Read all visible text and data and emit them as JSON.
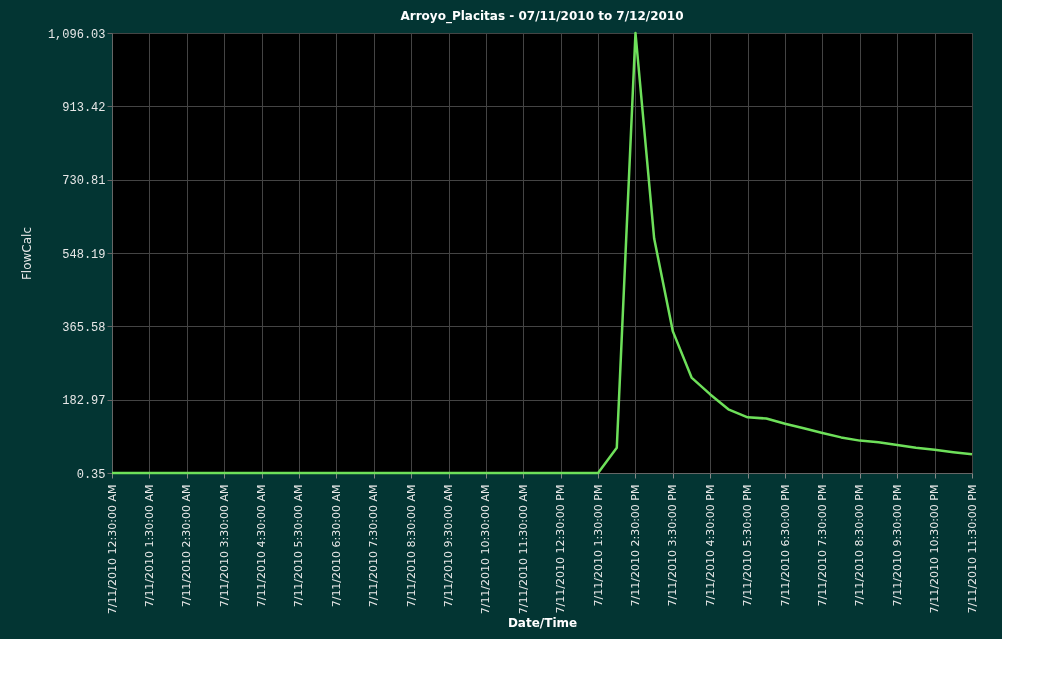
{
  "chart_data": {
    "type": "line",
    "title": "Arroyo_Placitas - 07/11/2010 to 7/12/2010",
    "xlabel": "Date/Time",
    "ylabel": "FlowCalc",
    "categories": [
      "7/11/2010 12:30:00 AM",
      null,
      "7/11/2010 1:30:00 AM",
      null,
      "7/11/2010 2:30:00 AM",
      null,
      "7/11/2010 3:30:00 AM",
      null,
      "7/11/2010 4:30:00 AM",
      null,
      "7/11/2010 5:30:00 AM",
      null,
      "7/11/2010 6:30:00 AM",
      null,
      "7/11/2010 7:30:00 AM",
      null,
      "7/11/2010 8:30:00 AM",
      null,
      "7/11/2010 9:30:00 AM",
      null,
      "7/11/2010 10:30:00 AM",
      null,
      "7/11/2010 11:30:00 AM",
      null,
      "7/11/2010 12:30:00 PM",
      null,
      "7/11/2010 1:30:00 PM",
      null,
      "7/11/2010 2:30:00 PM",
      null,
      "7/11/2010 3:30:00 PM",
      null,
      "7/11/2010 4:30:00 PM",
      null,
      "7/11/2010 5:30:00 PM",
      null,
      "7/11/2010 6:30:00 PM",
      null,
      "7/11/2010 7:30:00 PM",
      null,
      "7/11/2010 8:30:00 PM",
      null,
      "7/11/2010 9:30:00 PM",
      null,
      "7/11/2010 10:30:00 PM",
      null,
      "7/11/2010 11:30:00 PM"
    ],
    "series": [
      {
        "color": "#6ee05a",
        "values": [
          0.35,
          0.35,
          0.35,
          0.35,
          0.35,
          0.35,
          0.35,
          0.35,
          0.35,
          0.35,
          0.35,
          0.35,
          0.35,
          0.35,
          0.35,
          0.35,
          0.35,
          0.35,
          0.35,
          0.35,
          0.35,
          0.35,
          0.35,
          0.35,
          0.35,
          0.35,
          0.35,
          63,
          1096.03,
          584,
          353,
          238,
          196,
          158,
          139,
          136,
          123,
          112,
          100,
          89,
          81,
          77,
          70,
          63,
          58,
          52,
          47
        ]
      }
    ],
    "ylim": [
      0.35,
      1096.03
    ],
    "yticks": [
      0.35,
      182.97,
      365.58,
      548.19,
      730.81,
      913.42,
      {
        "value": 1096.03,
        "label": "1,096.03"
      }
    ],
    "grid": true,
    "marker": "none",
    "line_style": "solid"
  }
}
